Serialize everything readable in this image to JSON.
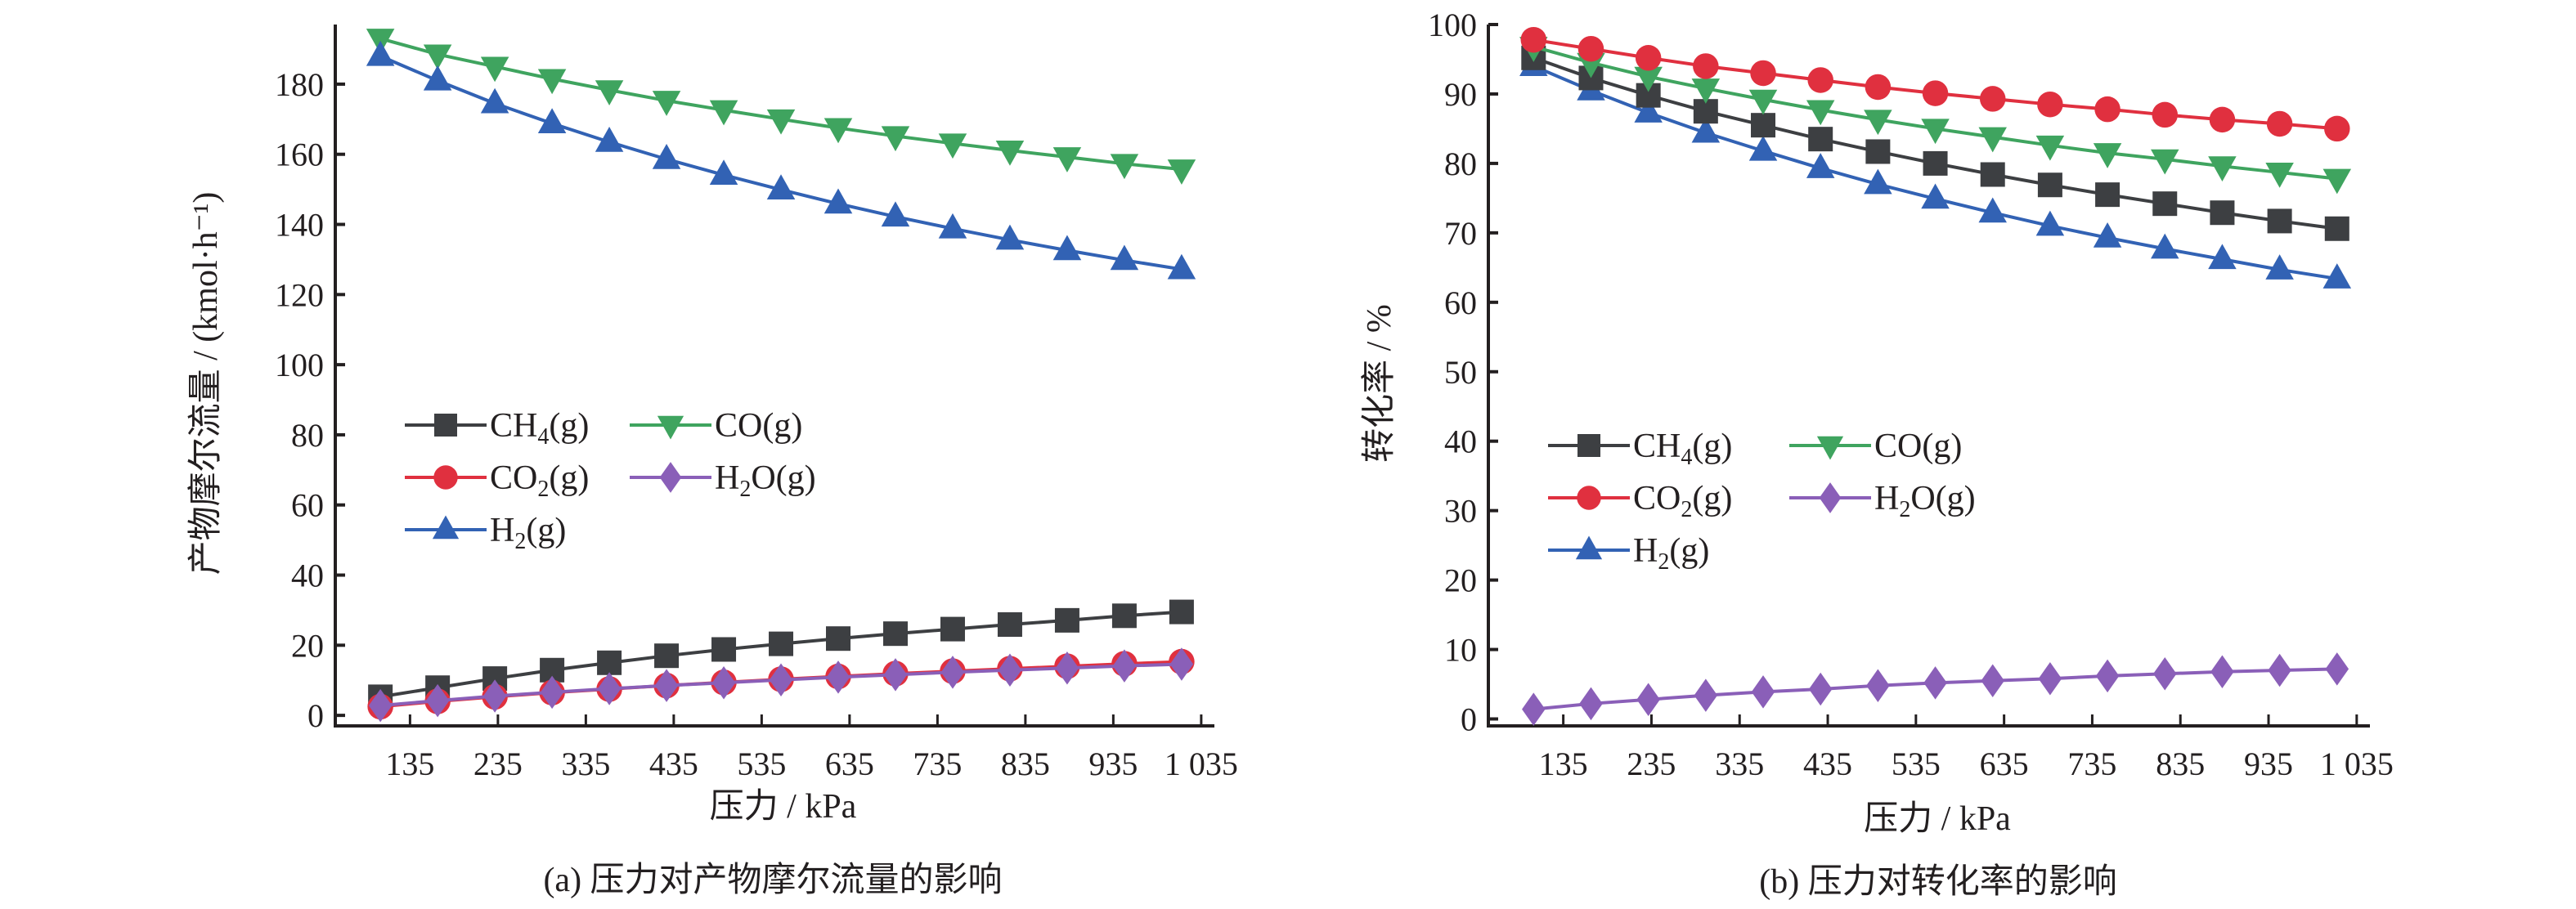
{
  "chart_data": [
    {
      "type": "line",
      "caption": "(a) 压力对产物摩尔流量的影响",
      "xlabel": "压力 / kPa",
      "ylabel": "产物摩尔流量 / (kmol·h⁻¹)",
      "xlim": [
        50,
        1050
      ],
      "ylim": [
        -3,
        197
      ],
      "xticks": [
        135,
        235,
        335,
        435,
        535,
        635,
        735,
        835,
        935,
        1035
      ],
      "xtick_labels": [
        "135",
        "235",
        "335",
        "435",
        "535",
        "635",
        "735",
        "835",
        "935",
        "1 035"
      ],
      "yticks": [
        0,
        20,
        40,
        60,
        80,
        100,
        120,
        140,
        160,
        180
      ],
      "ytick_labels": [
        "0",
        "20",
        "40",
        "60",
        "80",
        "100",
        "120",
        "140",
        "160",
        "180"
      ],
      "grid": false,
      "legend": "center-left",
      "x": [
        101.3,
        166.4,
        231.5,
        296.6,
        361.7,
        426.8,
        491.9,
        557.0,
        622.1,
        687.2,
        752.3,
        817.4,
        882.5,
        947.6,
        1012.7
      ],
      "series": [
        {
          "name": "CH4(g)",
          "label_base": "CH",
          "label_sub": "4",
          "label_tail": "(g)",
          "marker": "square",
          "color": "#3d3f42",
          "values": [
            5.3,
            7.9,
            10.5,
            12.9,
            15.0,
            17.0,
            18.8,
            20.4,
            21.9,
            23.3,
            24.6,
            25.9,
            27.1,
            28.4,
            29.5
          ]
        },
        {
          "name": "CO(g)",
          "label_base": "CO",
          "label_sub": "",
          "label_tail": "(g)",
          "marker": "triangle-down",
          "color": "#3fa45f",
          "values": [
            193.0,
            188.5,
            185.0,
            181.5,
            178.3,
            175.3,
            172.6,
            170.0,
            167.5,
            165.2,
            163.1,
            161.1,
            159.2,
            157.3,
            155.7
          ]
        },
        {
          "name": "CO2(g)",
          "label_base": "CO",
          "label_sub": "2",
          "label_tail": "(g)",
          "marker": "circle",
          "color": "#e0303f",
          "values": [
            2.5,
            4.0,
            5.3,
            6.5,
            7.5,
            8.5,
            9.4,
            10.3,
            11.1,
            11.9,
            12.6,
            13.3,
            14.0,
            14.7,
            15.3
          ]
        },
        {
          "name": "H2O(g)",
          "label_base": "H",
          "label_sub": "2",
          "label_tail": "O(g)",
          "marker": "diamond",
          "color": "#8a5fb8",
          "values": [
            2.8,
            4.2,
            5.5,
            6.6,
            7.6,
            8.5,
            9.3,
            10.1,
            10.9,
            11.6,
            12.3,
            12.9,
            13.5,
            14.1,
            14.6
          ]
        },
        {
          "name": "H2(g)",
          "label_base": "H",
          "label_sub": "2",
          "label_tail": "(g)",
          "marker": "triangle-up",
          "color": "#3262b4",
          "values": [
            188.0,
            181.0,
            174.5,
            168.8,
            163.5,
            158.6,
            154.1,
            149.9,
            145.9,
            142.2,
            138.8,
            135.6,
            132.6,
            129.8,
            127.2
          ]
        }
      ]
    },
    {
      "type": "line",
      "caption": "(b) 压力对转化率的影响",
      "xlabel": "压力 / kPa",
      "ylabel": "转化率 / %",
      "xlim": [
        50,
        1050
      ],
      "ylim": [
        -1,
        100
      ],
      "xticks": [
        135,
        235,
        335,
        435,
        535,
        635,
        735,
        835,
        935,
        1035
      ],
      "xtick_labels": [
        "135",
        "235",
        "335",
        "435",
        "535",
        "635",
        "735",
        "835",
        "935",
        "1 035"
      ],
      "yticks": [
        0,
        10,
        20,
        30,
        40,
        50,
        60,
        70,
        80,
        90,
        100
      ],
      "ytick_labels": [
        "0",
        "10",
        "20",
        "30",
        "40",
        "50",
        "60",
        "70",
        "80",
        "90",
        "100"
      ],
      "grid": false,
      "legend": "center-left",
      "x": [
        101.3,
        166.4,
        231.5,
        296.6,
        361.7,
        426.8,
        491.9,
        557.0,
        622.1,
        687.2,
        752.3,
        817.4,
        882.5,
        947.6,
        1012.7
      ],
      "series": [
        {
          "name": "CH4(g)",
          "label_base": "CH",
          "label_sub": "4",
          "label_tail": "(g)",
          "marker": "square",
          "color": "#3d3f42",
          "values": [
            95.2,
            92.3,
            89.8,
            87.5,
            85.5,
            83.5,
            81.7,
            80.0,
            78.4,
            76.9,
            75.5,
            74.2,
            72.9,
            71.7,
            70.6
          ]
        },
        {
          "name": "CO(g)",
          "label_base": "CO",
          "label_sub": "",
          "label_tail": "(g)",
          "marker": "triangle-down",
          "color": "#3fa45f",
          "values": [
            96.8,
            94.5,
            92.5,
            90.8,
            89.2,
            87.7,
            86.3,
            85.0,
            83.8,
            82.6,
            81.5,
            80.6,
            79.6,
            78.7,
            77.8
          ]
        },
        {
          "name": "CO2(g)",
          "label_base": "CO",
          "label_sub": "2",
          "label_tail": "(g)",
          "marker": "circle",
          "color": "#e0303f",
          "values": [
            97.8,
            96.5,
            95.2,
            94.0,
            93.0,
            92.0,
            91.0,
            90.1,
            89.3,
            88.5,
            87.8,
            87.0,
            86.3,
            85.7,
            85.0
          ]
        },
        {
          "name": "H2O(g)",
          "label_base": "H",
          "label_sub": "2",
          "label_tail": "O(g)",
          "marker": "diamond",
          "color": "#8a5fb8",
          "values": [
            1.4,
            2.2,
            2.8,
            3.4,
            3.9,
            4.3,
            4.8,
            5.2,
            5.5,
            5.8,
            6.2,
            6.5,
            6.8,
            7.0,
            7.2
          ]
        },
        {
          "name": "H2(g)",
          "label_base": "H",
          "label_sub": "2",
          "label_tail": "(g)",
          "marker": "triangle-up",
          "color": "#3262b4",
          "values": [
            94.0,
            90.5,
            87.3,
            84.4,
            81.8,
            79.3,
            77.0,
            74.9,
            72.9,
            71.0,
            69.3,
            67.7,
            66.2,
            64.7,
            63.4
          ]
        }
      ]
    }
  ]
}
